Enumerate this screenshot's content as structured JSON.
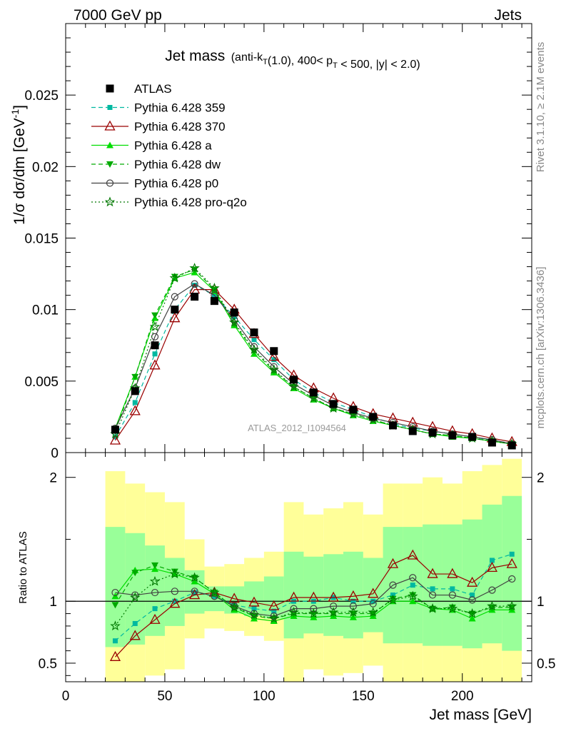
{
  "header": {
    "left": "7000 GeV pp",
    "right": "Jets"
  },
  "side_labels": {
    "top": "Rivet 3.1.10, ≥ 2.1M events",
    "bottom": "mcplots.cern.ch [arXiv:1306.3436]"
  },
  "chart_data": {
    "type": "line",
    "title_main": "Jet mass",
    "title_detail": "(anti-k_T(1.0), 400< p_T < 500, |y| < 2.0)",
    "ylabel": "1/σ dσ/dm [GeV^-1]",
    "xlabel": "Jet mass [GeV]",
    "watermark": "ATLAS_2012_I1094564",
    "ratio_ylabel": "Ratio to ATLAS",
    "xlim": [
      0,
      235
    ],
    "ylim": [
      0,
      0.03
    ],
    "ratio_ylim": [
      0.35,
      2.2
    ],
    "x_ticks": [
      "0",
      "50",
      "100",
      "150",
      "200"
    ],
    "y_ticks": [
      "0",
      "0.005",
      "0.01",
      "0.015",
      "0.02",
      "0.025"
    ],
    "ratio_ticks": [
      "0.5",
      "1",
      "2"
    ],
    "x": [
      25,
      35,
      45,
      55,
      65,
      75,
      85,
      95,
      105,
      115,
      125,
      135,
      145,
      155,
      165,
      175,
      185,
      195,
      205,
      215,
      225
    ],
    "data": {
      "name": "ATLAS",
      "values": [
        0.0016,
        0.0043,
        0.0075,
        0.01,
        0.0109,
        0.0106,
        0.0098,
        0.0084,
        0.0071,
        0.0051,
        0.0042,
        0.0034,
        0.003,
        0.0025,
        0.0019,
        0.0015,
        0.0014,
        0.0012,
        0.0011,
        0.0007,
        0.0005
      ]
    },
    "series": [
      {
        "name": "Pythia 6.428 359",
        "color": "#00b8a0",
        "dash": "6,4",
        "marker": "square",
        "values": [
          0.0011,
          0.0035,
          0.0069,
          0.01,
          0.0117,
          0.011,
          0.0095,
          0.0079,
          0.0065,
          0.0051,
          0.0042,
          0.0035,
          0.003,
          0.0025,
          0.002,
          0.0017,
          0.0015,
          0.0013,
          0.0011,
          0.00085,
          0.00065
        ]
      },
      {
        "name": "Pythia 6.428 370",
        "color": "#9a0000",
        "dash": "",
        "marker": "open-triangle",
        "values": [
          0.00085,
          0.0029,
          0.0061,
          0.0094,
          0.0114,
          0.0114,
          0.01,
          0.0083,
          0.0067,
          0.0054,
          0.0045,
          0.0038,
          0.0032,
          0.0027,
          0.0024,
          0.0021,
          0.0018,
          0.0015,
          0.0013,
          0.001,
          0.00075
        ]
      },
      {
        "name": "Pythia 6.428 a",
        "color": "#00dd00",
        "dash": "",
        "marker": "triangle",
        "values": [
          0.0017,
          0.0053,
          0.0094,
          0.0122,
          0.0126,
          0.0113,
          0.0089,
          0.0069,
          0.0056,
          0.0045,
          0.0037,
          0.0031,
          0.0026,
          0.0022,
          0.0019,
          0.0016,
          0.0013,
          0.0011,
          0.001,
          0.0008,
          0.0006
        ]
      },
      {
        "name": "Pythia 6.428 dw",
        "color": "#00aa00",
        "dash": "6,4",
        "marker": "down-triangle",
        "values": [
          0.0015,
          0.0053,
          0.0096,
          0.0123,
          0.0128,
          0.0114,
          0.009,
          0.0071,
          0.0057,
          0.0046,
          0.0038,
          0.0031,
          0.0027,
          0.0023,
          0.0019,
          0.0016,
          0.0013,
          0.0012,
          0.001,
          0.0008,
          0.0006
        ]
      },
      {
        "name": "Pythia 6.428 p0",
        "color": "#404040",
        "dash": "",
        "marker": "open-circle",
        "values": [
          0.0017,
          0.0045,
          0.0081,
          0.0109,
          0.0118,
          0.011,
          0.0093,
          0.0074,
          0.006,
          0.0048,
          0.004,
          0.0033,
          0.0028,
          0.0024,
          0.0021,
          0.0018,
          0.0015,
          0.0013,
          0.0011,
          0.0009,
          0.0006
        ]
      },
      {
        "name": "Pythia 6.428 pro-q2o",
        "color": "#007700",
        "dash": "2,3",
        "marker": "star",
        "values": [
          0.0013,
          0.0045,
          0.0088,
          0.0122,
          0.0129,
          0.0115,
          0.0091,
          0.0072,
          0.0058,
          0.0046,
          0.0038,
          0.0031,
          0.0027,
          0.0023,
          0.0019,
          0.0016,
          0.0013,
          0.0012,
          0.001,
          0.0008,
          0.0006
        ]
      }
    ],
    "ratios": {
      "Pythia 6.428 359": [
        0.68,
        0.82,
        0.94,
        1.0,
        1.07,
        1.04,
        0.97,
        0.94,
        0.92,
        1.0,
        1.0,
        1.03,
        1.0,
        1.0,
        1.05,
        1.13,
        1.1,
        1.1,
        1.05,
        1.33,
        1.38
      ],
      "Pythia 6.428 370": [
        0.55,
        0.72,
        0.85,
        0.98,
        1.05,
        1.07,
        1.02,
        0.99,
        0.96,
        1.03,
        1.03,
        1.03,
        1.04,
        1.06,
        1.3,
        1.37,
        1.22,
        1.22,
        1.15,
        1.27,
        1.3
      ],
      "Pythia 6.428 a": [
        1.04,
        1.25,
        1.26,
        1.22,
        1.16,
        1.06,
        0.93,
        0.86,
        0.84,
        0.88,
        0.87,
        0.88,
        0.87,
        0.88,
        1.0,
        1.0,
        0.94,
        0.93,
        0.86,
        0.93,
        0.93
      ],
      "Pythia 6.428 dw": [
        0.97,
        1.23,
        1.29,
        1.24,
        1.19,
        1.07,
        0.95,
        0.88,
        0.86,
        0.9,
        0.9,
        0.9,
        0.9,
        0.9,
        1.02,
        1.05,
        0.94,
        0.95,
        0.9,
        0.95,
        0.95
      ],
      "Pythia 6.428 p0": [
        1.07,
        1.05,
        1.07,
        1.08,
        1.08,
        1.04,
        0.96,
        0.9,
        0.88,
        0.94,
        0.94,
        0.96,
        0.96,
        0.98,
        1.13,
        1.19,
        1.05,
        1.05,
        1.01,
        1.09,
        1.18
      ],
      "Pythia 6.428 pro-q2o": [
        0.8,
        1.03,
        1.16,
        1.22,
        1.19,
        1.07,
        0.95,
        0.89,
        0.86,
        0.91,
        0.9,
        0.91,
        0.91,
        0.91,
        1.01,
        1.04,
        0.94,
        0.94,
        0.9,
        0.96,
        0.96
      ]
    },
    "band_edges": [
      20,
      30,
      40,
      50,
      60,
      70,
      80,
      90,
      100,
      110,
      120,
      130,
      140,
      150,
      160,
      170,
      180,
      190,
      200,
      210,
      220,
      230
    ],
    "band_inner": [
      [
        0.63,
        1.6
      ],
      [
        0.65,
        1.55
      ],
      [
        0.72,
        1.45
      ],
      [
        0.8,
        1.35
      ],
      [
        0.9,
        1.25
      ],
      [
        0.92,
        1.12
      ],
      [
        0.9,
        1.12
      ],
      [
        0.88,
        1.16
      ],
      [
        0.86,
        1.2
      ],
      [
        0.7,
        1.4
      ],
      [
        0.74,
        1.36
      ],
      [
        0.72,
        1.38
      ],
      [
        0.7,
        1.4
      ],
      [
        0.75,
        1.35
      ],
      [
        0.66,
        1.6
      ],
      [
        0.66,
        1.6
      ],
      [
        0.64,
        1.62
      ],
      [
        0.64,
        1.62
      ],
      [
        0.62,
        1.66
      ],
      [
        0.66,
        1.78
      ],
      [
        0.6,
        1.85
      ]
    ],
    "band_outer": [
      [
        0.2,
        2.05
      ],
      [
        0.22,
        1.95
      ],
      [
        0.4,
        1.88
      ],
      [
        0.45,
        1.8
      ],
      [
        0.7,
        1.5
      ],
      [
        0.78,
        1.28
      ],
      [
        0.76,
        1.3
      ],
      [
        0.72,
        1.35
      ],
      [
        0.68,
        1.4
      ],
      [
        0.35,
        1.8
      ],
      [
        0.45,
        1.7
      ],
      [
        0.4,
        1.75
      ],
      [
        0.42,
        1.8
      ],
      [
        0.48,
        1.7
      ],
      [
        0.3,
        1.95
      ],
      [
        0.32,
        1.95
      ],
      [
        0.3,
        2.0
      ],
      [
        0.3,
        1.95
      ],
      [
        0.25,
        2.05
      ],
      [
        0.2,
        2.1
      ],
      [
        0.25,
        2.15
      ]
    ]
  }
}
